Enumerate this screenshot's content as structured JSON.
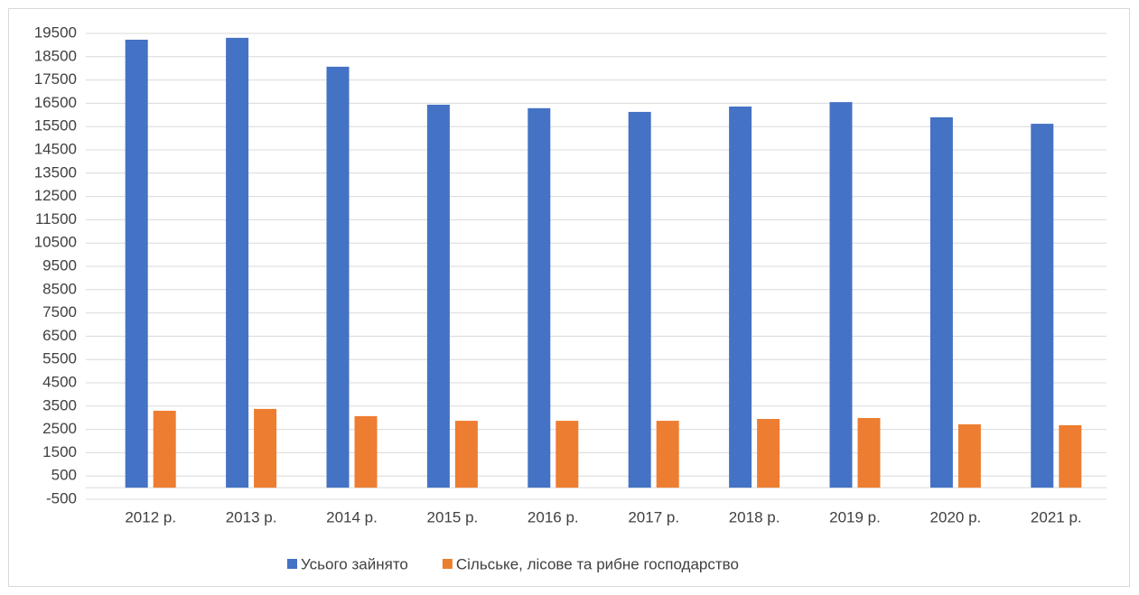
{
  "chart_data": {
    "type": "bar",
    "categories": [
      "2012 р.",
      "2013 р.",
      "2014 р.",
      "2015 р.",
      "2016 р.",
      "2017 р.",
      "2018 р.",
      "2019 р.",
      "2020 р.",
      "2021 р."
    ],
    "series": [
      {
        "name": "Усього зайнято",
        "color": "#4472c4",
        "values": [
          19230,
          19310,
          18070,
          16440,
          16290,
          16130,
          16360,
          16550,
          15900,
          15620
        ]
      },
      {
        "name": "Сільське, лісове та рибне господарство",
        "color": "#ed7d31",
        "values": [
          3300,
          3380,
          3070,
          2870,
          2870,
          2870,
          2950,
          2990,
          2720,
          2680
        ]
      }
    ],
    "ylim": [
      -500,
      19500
    ],
    "yticks": [
      -500,
      500,
      1500,
      2500,
      3500,
      4500,
      5500,
      6500,
      7500,
      8500,
      9500,
      10500,
      11500,
      12500,
      13500,
      14500,
      15500,
      16500,
      17500,
      18500,
      19500
    ],
    "grid": true,
    "legend": "bottom"
  }
}
